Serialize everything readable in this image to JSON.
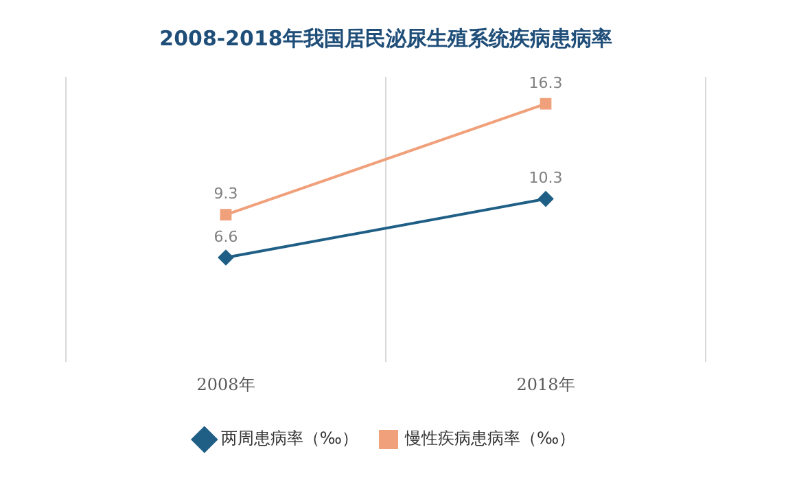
{
  "chart_data": {
    "type": "line",
    "title": "2008-2018年我国居民泌尿生殖系统疾病患病率",
    "categories": [
      "2008年",
      "2018年"
    ],
    "series": [
      {
        "name": "两周患病率（‰）",
        "color": "#1f5f86",
        "values": [
          6.6,
          10.3
        ],
        "marker": "diamond"
      },
      {
        "name": "慢性疾病患病率（‰）",
        "color": "#f0a07a",
        "values": [
          9.3,
          16.3
        ],
        "marker": "square"
      }
    ],
    "data_labels": true,
    "legend": "bottom",
    "grid": "x",
    "tick_labels": "x"
  }
}
